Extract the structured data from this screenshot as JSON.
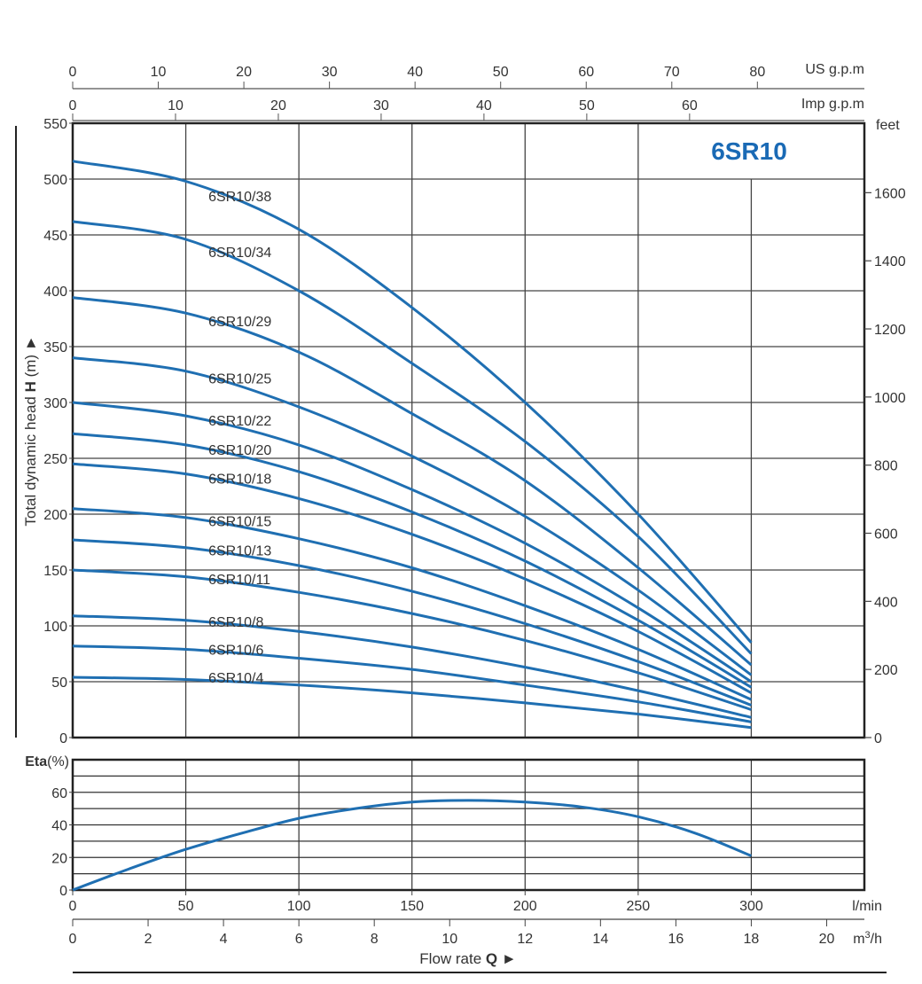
{
  "chart_data": [
    {
      "type": "line",
      "title": "6SR10",
      "xlabel": "Flow rate Q ►",
      "ylabel": "Total dynamic head H (m) ►",
      "x_unit": "l/min",
      "xlim": [
        0,
        350
      ],
      "ylim": [
        0,
        550
      ],
      "y_ticks": [
        0,
        50,
        100,
        150,
        200,
        250,
        300,
        350,
        400,
        450,
        500,
        550
      ],
      "x_ticks": [
        0,
        50,
        100,
        150,
        200,
        250,
        300
      ],
      "x": [
        0,
        50,
        100,
        150,
        200,
        250,
        300
      ],
      "grid": true,
      "secondary_y": {
        "unit": "feet",
        "ticks": [
          0,
          200,
          400,
          600,
          800,
          1000,
          1200,
          1400,
          1600
        ],
        "range": [
          0,
          1804
        ]
      },
      "top_axes": [
        {
          "unit": "US g.p.m",
          "ticks": [
            0,
            10,
            20,
            30,
            40,
            50,
            60,
            70,
            80
          ],
          "max": 92.5
        },
        {
          "unit": "Imp g.p.m",
          "ticks": [
            0,
            10,
            20,
            30,
            40,
            50,
            60
          ],
          "max": 77
        }
      ],
      "bottom_secondary_axis": {
        "unit": "m³/h",
        "ticks": [
          0,
          2,
          4,
          6,
          8,
          10,
          12,
          14,
          16,
          18,
          20
        ],
        "max": 21
      },
      "series": [
        {
          "name": "6SR10/38",
          "values": [
            516,
            498,
            455,
            385,
            300,
            200,
            85
          ]
        },
        {
          "name": "6SR10/34",
          "values": [
            462,
            446,
            400,
            335,
            265,
            180,
            75
          ]
        },
        {
          "name": "6SR10/29",
          "values": [
            394,
            380,
            345,
            290,
            230,
            152,
            65
          ]
        },
        {
          "name": "6SR10/25",
          "values": [
            340,
            328,
            296,
            252,
            198,
            132,
            56
          ]
        },
        {
          "name": "6SR10/22",
          "values": [
            300,
            288,
            262,
            222,
            174,
            116,
            50
          ]
        },
        {
          "name": "6SR10/20",
          "values": [
            272,
            262,
            238,
            202,
            158,
            105,
            45
          ]
        },
        {
          "name": "6SR10/18",
          "values": [
            245,
            236,
            214,
            182,
            142,
            95,
            40
          ]
        },
        {
          "name": "6SR10/15",
          "values": [
            205,
            197,
            178,
            152,
            118,
            79,
            34
          ]
        },
        {
          "name": "6SR10/13",
          "values": [
            177,
            170,
            154,
            131,
            102,
            68,
            29
          ]
        },
        {
          "name": "6SR10/11",
          "values": [
            150,
            144,
            130,
            111,
            87,
            58,
            25
          ]
        },
        {
          "name": "6SR10/8",
          "values": [
            109,
            105,
            95,
            81,
            63,
            42,
            18
          ]
        },
        {
          "name": "6SR10/6",
          "values": [
            82,
            79,
            71,
            61,
            47,
            32,
            14
          ]
        },
        {
          "name": "6SR10/4",
          "values": [
            54,
            52,
            47,
            40,
            31,
            21,
            9
          ]
        }
      ],
      "label_positions_m": [
        {
          "name": "6SR10/38",
          "y": 485
        },
        {
          "name": "6SR10/34",
          "y": 435
        },
        {
          "name": "6SR10/29",
          "y": 373
        },
        {
          "name": "6SR10/25",
          "y": 322
        },
        {
          "name": "6SR10/22",
          "y": 284
        },
        {
          "name": "6SR10/20",
          "y": 258
        },
        {
          "name": "6SR10/18",
          "y": 232
        },
        {
          "name": "6SR10/15",
          "y": 194
        },
        {
          "name": "6SR10/13",
          "y": 168
        },
        {
          "name": "6SR10/11",
          "y": 142
        },
        {
          "name": "6SR10/8",
          "y": 104
        },
        {
          "name": "6SR10/6",
          "y": 79
        },
        {
          "name": "6SR10/4",
          "y": 54
        }
      ],
      "line_color": "#1f6fb2"
    },
    {
      "type": "line",
      "title": "",
      "xlabel": "",
      "ylabel": "Eta(%)",
      "xlim": [
        0,
        350
      ],
      "ylim": [
        0,
        80
      ],
      "y_ticks": [
        0,
        20,
        40,
        60
      ],
      "x": [
        0,
        25,
        50,
        75,
        100,
        125,
        150,
        175,
        200,
        225,
        250,
        275,
        300
      ],
      "series": [
        {
          "name": "",
          "values": [
            0,
            13,
            25,
            35,
            44,
            50,
            54,
            55,
            54,
            51,
            45,
            35,
            21
          ]
        }
      ],
      "grid": true,
      "line_color": "#1f6fb2"
    }
  ],
  "labels": {
    "us_gpm": "US g.p.m",
    "imp_gpm": "Imp g.p.m",
    "feet": "feet",
    "lmin": "l/min",
    "m3h_prefix": "m",
    "m3h_sup": "3",
    "m3h_suffix": "/h",
    "flow_rate": "Flow rate ",
    "flow_q": "Q",
    "flow_arrow": " ►",
    "head_text": "Total dynamic head ",
    "head_h": "H",
    "head_unit": " (m) ►",
    "eta_bold": "Eta",
    "eta_unit": "(%)"
  }
}
